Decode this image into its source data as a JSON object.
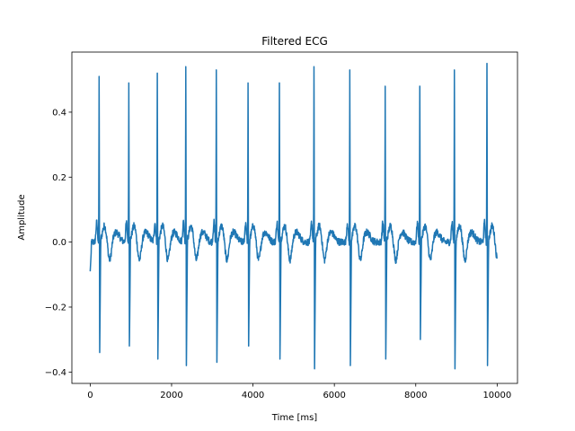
{
  "chart_data": {
    "type": "line",
    "title": "Filtered ECG",
    "xlabel": "Time [ms]",
    "ylabel": "Amplitude",
    "xlim": [
      -450,
      10500
    ],
    "ylim": [
      -0.435,
      0.585
    ],
    "xticks": [
      0,
      2000,
      4000,
      6000,
      8000,
      10000
    ],
    "xtick_labels": [
      "0",
      "2000",
      "4000",
      "6000",
      "8000",
      "10000"
    ],
    "yticks": [
      -0.4,
      -0.2,
      0.0,
      0.2,
      0.4
    ],
    "ytick_labels": [
      "−0.4",
      "−0.2",
      "0.0",
      "0.2",
      "0.4"
    ],
    "grid": false,
    "line_color": "#1f77b4",
    "x_range": [
      0,
      10000
    ],
    "beats": [
      {
        "t": 220,
        "peak": 0.51,
        "trough": -0.34
      },
      {
        "t": 950,
        "peak": 0.49,
        "trough": -0.32
      },
      {
        "t": 1650,
        "peak": 0.52,
        "trough": -0.36
      },
      {
        "t": 2350,
        "peak": 0.54,
        "trough": -0.38
      },
      {
        "t": 3100,
        "peak": 0.53,
        "trough": -0.37
      },
      {
        "t": 3880,
        "peak": 0.49,
        "trough": -0.32
      },
      {
        "t": 4650,
        "peak": 0.49,
        "trough": -0.36
      },
      {
        "t": 5500,
        "peak": 0.54,
        "trough": -0.39
      },
      {
        "t": 6380,
        "peak": 0.53,
        "trough": -0.38
      },
      {
        "t": 7250,
        "peak": 0.48,
        "trough": -0.36
      },
      {
        "t": 8100,
        "peak": 0.48,
        "trough": -0.3
      },
      {
        "t": 8950,
        "peak": 0.53,
        "trough": -0.39
      },
      {
        "t": 9750,
        "peak": 0.55,
        "trough": -0.38
      }
    ]
  }
}
